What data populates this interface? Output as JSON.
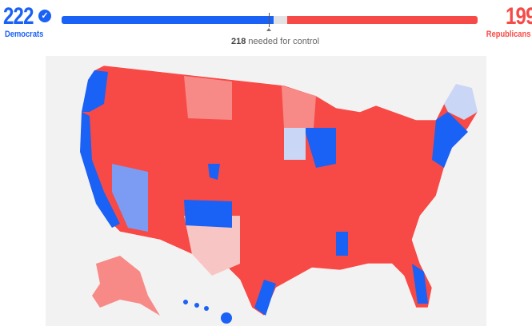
{
  "democrats": {
    "seats": "222",
    "label": "Democrats",
    "color": "#1a61f5"
  },
  "republicans": {
    "seats": "199",
    "label": "Republicans",
    "color": "#f74a46"
  },
  "control": {
    "number": "218",
    "text": " needed for control"
  },
  "total_seats": 435,
  "colors": {
    "dem": "#1a61f5",
    "dem_lean": "#7b9cf2",
    "dem_tilt": "#c9d6f5",
    "rep": "#f74a46",
    "rep_lean": "#f78a87",
    "rep_tilt": "#f7c6c4"
  }
}
